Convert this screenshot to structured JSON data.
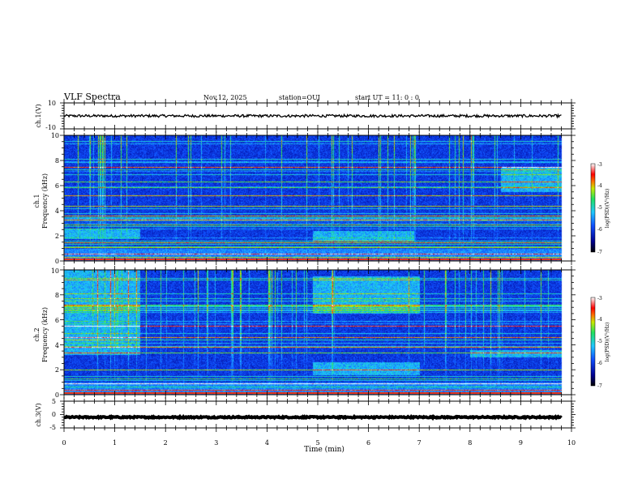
{
  "header": {
    "title": "VLF Spectra",
    "date": "Nov.12, 2025",
    "station": "station=OUJ",
    "start": "start  UT =   11: 0  : 0"
  },
  "chart_data": [
    {
      "type": "line",
      "name": "ch1-waveform",
      "ylabel": "ch.1(V)",
      "ylim": [
        -10,
        10
      ],
      "yticks": [
        "10",
        "-10"
      ],
      "xlim": [
        0,
        10
      ],
      "baseline": 0,
      "noise_amplitude": 1
    },
    {
      "type": "heatmap",
      "name": "ch1-spectrogram",
      "ylabel_top": "ch.1",
      "ylabel": "Frequency  (kHz)",
      "ylim": [
        0,
        10
      ],
      "yticks": [
        "0",
        "2",
        "4",
        "6",
        "8",
        "10"
      ],
      "xlim": [
        0,
        10
      ],
      "data_xmax": 9.8,
      "colorbar": {
        "ticks": [
          "-3",
          "-4",
          "-5",
          "-6",
          "-7"
        ],
        "label": "log(PSD)(V²/Hz)",
        "range": [
          -7,
          -3
        ]
      },
      "bright_blocks": [
        {
          "t0": 0.0,
          "t1": 1.5,
          "f0": 1.8,
          "f1": 2.6
        },
        {
          "t0": 4.9,
          "t1": 6.9,
          "f0": 1.6,
          "f1": 2.4
        },
        {
          "t0": 8.6,
          "t1": 9.8,
          "f0": 5.5,
          "f1": 7.5
        }
      ],
      "lines_khz": [
        0.3,
        0.6,
        1.1,
        1.5,
        2.9,
        3.3,
        3.6,
        4.4,
        5.2,
        5.9,
        6.3,
        7.5
      ]
    },
    {
      "type": "heatmap",
      "name": "ch2-spectrogram",
      "ylabel_top": "ch.2",
      "ylabel": "Frequency  (kHz)",
      "ylim": [
        0,
        10
      ],
      "yticks": [
        "0",
        "2",
        "4",
        "6",
        "8",
        "10"
      ],
      "xlim": [
        0,
        10
      ],
      "data_xmax": 9.8,
      "colorbar": {
        "ticks": [
          "-3",
          "-4",
          "-5",
          "-6",
          "-7"
        ],
        "label": "log(PSD)(V²/Hz)",
        "range": [
          -7,
          -3
        ]
      },
      "bright_blocks": [
        {
          "t0": 0.0,
          "t1": 1.5,
          "f0": 3.2,
          "f1": 10.0
        },
        {
          "t0": 4.9,
          "t1": 7.0,
          "f0": 6.5,
          "f1": 9.5
        },
        {
          "t0": 4.9,
          "t1": 7.0,
          "f0": 1.6,
          "f1": 2.6
        },
        {
          "t0": 8.0,
          "t1": 9.8,
          "f0": 3.0,
          "f1": 3.6
        }
      ],
      "lines_khz": [
        0.4,
        0.9,
        1.3,
        2.0,
        3.4,
        3.8,
        4.6,
        5.5,
        7.2
      ]
    },
    {
      "type": "line",
      "name": "ch3-waveform",
      "ylabel": "ch.3(V)",
      "ylim": [
        -5,
        5
      ],
      "yticks": [
        "5",
        "0",
        "-5"
      ],
      "xlim": [
        0,
        10
      ],
      "baseline": -1,
      "noise_amplitude": 0.25
    }
  ],
  "xaxis": {
    "label": "Time  (min)",
    "ticks": [
      "0",
      "1",
      "2",
      "3",
      "4",
      "5",
      "6",
      "7",
      "8",
      "9",
      "10"
    ],
    "range": [
      0,
      10
    ]
  }
}
